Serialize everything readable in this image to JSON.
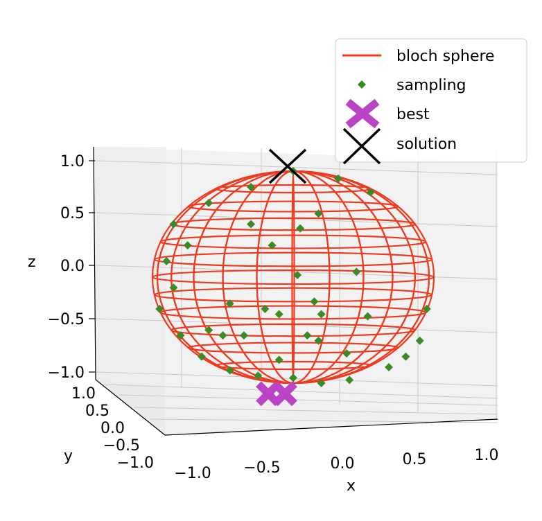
{
  "chart_data": {
    "type": "scatter",
    "projection": "3d",
    "title": "",
    "xlabel": "x",
    "ylabel": "y",
    "zlabel": "z",
    "xlim": [
      -1.1,
      1.1
    ],
    "ylim": [
      -1.1,
      1.1
    ],
    "zlim": [
      -1.1,
      1.1
    ],
    "x_ticks": [
      "−1.0",
      "−0.5",
      "0.0",
      "0.5",
      "1.0"
    ],
    "y_ticks": [
      "−1.0",
      "−0.5",
      "0.0",
      "0.5",
      "1.0"
    ],
    "z_ticks": [
      "−1.0",
      "−0.5",
      "0.0",
      "0.5",
      "1.0"
    ],
    "grid": true,
    "legend_position": "top-right",
    "series": [
      {
        "name": "bloch sphere",
        "kind": "wireframe",
        "color": "#ee3a1f",
        "radius": 1.0
      },
      {
        "name": "sampling",
        "kind": "scatter",
        "marker": "diamond",
        "color": "#3a8a26",
        "points": [
          [
            0.0,
            0.0,
            1.0
          ],
          [
            0.32,
            0.0,
            0.93
          ],
          [
            0.55,
            0.0,
            0.8
          ],
          [
            0.18,
            0.0,
            0.6
          ],
          [
            0.05,
            0.0,
            0.46
          ],
          [
            -0.15,
            0.0,
            0.3
          ],
          [
            -0.3,
            0.0,
            0.5
          ],
          [
            0.03,
            0.0,
            0.02
          ],
          [
            0.45,
            0.0,
            0.05
          ],
          [
            0.15,
            0.0,
            -0.23
          ],
          [
            -0.2,
            0.0,
            -0.3
          ],
          [
            0.2,
            0.0,
            -0.35
          ],
          [
            0.53,
            0.0,
            -0.37
          ],
          [
            0.1,
            0.0,
            -0.55
          ],
          [
            0.18,
            0.0,
            -0.6
          ],
          [
            -0.35,
            0.0,
            -0.55
          ],
          [
            -0.5,
            0.0,
            -0.55
          ],
          [
            -0.6,
            0.0,
            -0.5
          ],
          [
            -0.1,
            0.0,
            -0.35
          ],
          [
            -0.45,
            0.0,
            -0.25
          ],
          [
            -0.85,
            0.0,
            -0.1
          ],
          [
            -0.9,
            0.0,
            0.15
          ],
          [
            -0.95,
            0.0,
            -0.3
          ],
          [
            -0.75,
            0.0,
            0.3
          ],
          [
            0.95,
            0.0,
            -0.3
          ],
          [
            0.9,
            0.0,
            -0.6
          ],
          [
            0.8,
            0.0,
            -0.75
          ],
          [
            0.68,
            0.0,
            -0.85
          ],
          [
            0.4,
            0.0,
            -0.97
          ],
          [
            0.2,
            0.0,
            -1.0
          ],
          [
            0.0,
            0.0,
            -0.95
          ],
          [
            -0.25,
            0.0,
            -0.93
          ],
          [
            -0.45,
            0.0,
            -0.88
          ],
          [
            -0.65,
            0.0,
            -0.75
          ],
          [
            -0.8,
            0.0,
            -0.55
          ],
          [
            -0.3,
            0.0,
            0.85
          ],
          [
            -0.6,
            0.0,
            0.7
          ],
          [
            -0.85,
            0.0,
            0.5
          ],
          [
            0.38,
            0.0,
            -0.72
          ],
          [
            -0.1,
            0.0,
            -0.78
          ]
        ]
      },
      {
        "name": "best",
        "kind": "scatter",
        "marker": "X",
        "color": "#bb44c6",
        "points": [
          [
            0.0,
            0.0,
            -1.1
          ]
        ]
      },
      {
        "name": "solution",
        "kind": "scatter",
        "marker": "x",
        "color": "#000000",
        "points": [
          [
            0.0,
            0.0,
            1.0
          ]
        ]
      }
    ]
  }
}
